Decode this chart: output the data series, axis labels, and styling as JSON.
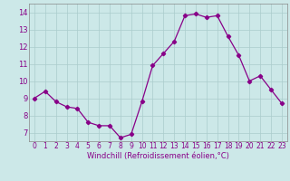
{
  "x": [
    0,
    1,
    2,
    3,
    4,
    5,
    6,
    7,
    8,
    9,
    10,
    11,
    12,
    13,
    14,
    15,
    16,
    17,
    18,
    19,
    20,
    21,
    22,
    23
  ],
  "y": [
    9.0,
    9.4,
    8.8,
    8.5,
    8.4,
    7.6,
    7.4,
    7.4,
    6.7,
    6.9,
    8.8,
    10.9,
    11.6,
    12.3,
    13.8,
    13.9,
    13.7,
    13.8,
    12.6,
    11.5,
    10.0,
    10.3,
    9.5,
    8.7
  ],
  "line_color": "#880088",
  "marker": "D",
  "marker_size": 2.2,
  "bg_color": "#cce8e8",
  "grid_color": "#aacccc",
  "xlabel": "Windchill (Refroidissement éolien,°C)",
  "xlim": [
    -0.5,
    23.5
  ],
  "ylim": [
    6.5,
    14.5
  ],
  "yticks": [
    7,
    8,
    9,
    10,
    11,
    12,
    13,
    14
  ],
  "xticks": [
    0,
    1,
    2,
    3,
    4,
    5,
    6,
    7,
    8,
    9,
    10,
    11,
    12,
    13,
    14,
    15,
    16,
    17,
    18,
    19,
    20,
    21,
    22,
    23
  ],
  "tick_fontsize": 5.5,
  "xlabel_fontsize": 6.0
}
